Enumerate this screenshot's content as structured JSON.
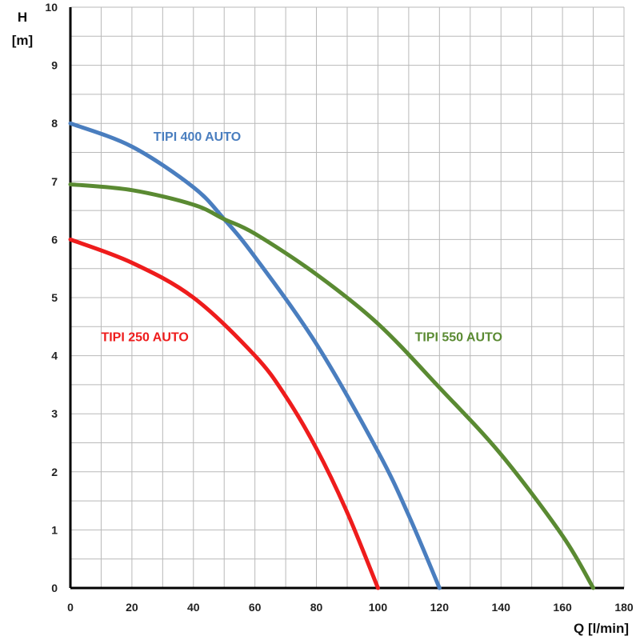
{
  "chart_data": {
    "type": "line",
    "xlabel": "Q [l/min]",
    "ylabel_line1": "H",
    "ylabel_line2": "[m]",
    "xlim": [
      0,
      180
    ],
    "ylim": [
      0,
      10
    ],
    "x_ticks": [
      0,
      20,
      40,
      60,
      80,
      100,
      120,
      140,
      160,
      180
    ],
    "y_ticks": [
      0,
      1,
      2,
      3,
      4,
      5,
      6,
      7,
      8,
      9,
      10
    ],
    "x_minor_step": 10,
    "y_minor_step": 0.5,
    "grid": true,
    "series": [
      {
        "name": "TIPI 250 AUTO",
        "color": "#ee1c1c",
        "points": [
          [
            0,
            6.0
          ],
          [
            20,
            5.6
          ],
          [
            40,
            5.0
          ],
          [
            60,
            4.0
          ],
          [
            70,
            3.3
          ],
          [
            80,
            2.4
          ],
          [
            90,
            1.3
          ],
          [
            100,
            0
          ]
        ]
      },
      {
        "name": "TIPI 400 AUTO",
        "color": "#4a7ebf",
        "points": [
          [
            0,
            8.0
          ],
          [
            20,
            7.6
          ],
          [
            40,
            6.9
          ],
          [
            50,
            6.35
          ],
          [
            60,
            5.7
          ],
          [
            80,
            4.2
          ],
          [
            100,
            2.35
          ],
          [
            110,
            1.25
          ],
          [
            120,
            0
          ]
        ]
      },
      {
        "name": "TIPI 550 AUTO",
        "color": "#5a8a32",
        "points": [
          [
            0,
            6.95
          ],
          [
            20,
            6.85
          ],
          [
            40,
            6.6
          ],
          [
            50,
            6.35
          ],
          [
            60,
            6.1
          ],
          [
            80,
            5.4
          ],
          [
            100,
            4.55
          ],
          [
            120,
            3.45
          ],
          [
            140,
            2.3
          ],
          [
            160,
            0.9
          ],
          [
            170,
            0
          ]
        ]
      }
    ],
    "annotations": [
      {
        "series": 0,
        "text": "TIPI 250 AUTO",
        "x": 10,
        "y": 4.25
      },
      {
        "series": 1,
        "text": "TIPI 400 AUTO",
        "x": 27,
        "y": 7.7
      },
      {
        "series": 2,
        "text": "TIPI 550 AUTO",
        "x": 112,
        "y": 4.25
      }
    ]
  }
}
